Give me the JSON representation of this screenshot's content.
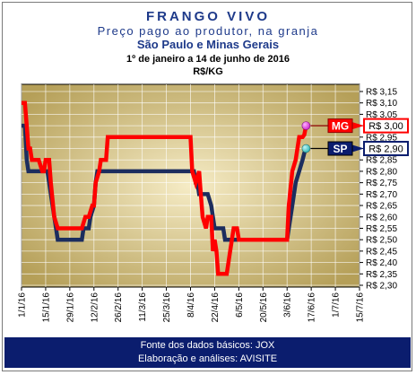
{
  "header": {
    "title": "FRANGO VIVO",
    "subtitle": "Preço pago ao produtor, na granja",
    "region": "São Paulo e Minas Gerais",
    "period": "1º de janeiro a 14 de junho de 2016",
    "unit": "R$/KG"
  },
  "footer": {
    "source": "Fonte dos dados básicos: JOX",
    "credit": "Elaboração e análises: AVISITE"
  },
  "colors": {
    "sp_line": "#1c2d5e",
    "mg_line": "#ff0000",
    "sp_marker": "#2ab3b3",
    "mg_marker": "#cc22cc",
    "plot_bg_light": "#f6ecc6",
    "plot_bg_dark": "#b59f58",
    "footer_bg": "#0b1d6e",
    "title_text": "#1e3a8a"
  },
  "chart_data": {
    "type": "line",
    "y_axis": {
      "position": "right",
      "ticks": [
        "R$ 3,15",
        "R$ 3,10",
        "R$ 3,05",
        "R$ 3,00",
        "R$ 2,95",
        "R$ 2,90",
        "R$ 2,85",
        "R$ 2,80",
        "R$ 2,75",
        "R$ 2,70",
        "R$ 2,65",
        "R$ 2,60",
        "R$ 2,55",
        "R$ 2,50",
        "R$ 2,45",
        "R$ 2,40",
        "R$ 2,35",
        "R$ 2,30"
      ],
      "range": [
        2.3,
        3.15
      ]
    },
    "x_axis": {
      "ticks": [
        "1/1/16",
        "15/1/16",
        "29/1/16",
        "12/2/16",
        "26/2/16",
        "11/3/16",
        "25/3/16",
        "8/4/16",
        "22/4/16",
        "6/5/16",
        "20/5/16",
        "3/6/16",
        "17/6/16",
        "1/7/16",
        "15/7/16"
      ]
    },
    "grid": true,
    "series": [
      {
        "name": "MG",
        "label": "MG",
        "end_value": "R$ 3,00",
        "points": [
          [
            "2016-01-01",
            3.1
          ],
          [
            "2016-01-03",
            3.1
          ],
          [
            "2016-01-04",
            3.0
          ],
          [
            "2016-01-05",
            2.9
          ],
          [
            "2016-01-06",
            2.9
          ],
          [
            "2016-01-07",
            2.85
          ],
          [
            "2016-01-11",
            2.85
          ],
          [
            "2016-01-13",
            2.8
          ],
          [
            "2016-01-14",
            2.8
          ],
          [
            "2016-01-15",
            2.85
          ],
          [
            "2016-01-17",
            2.85
          ],
          [
            "2016-01-18",
            2.75
          ],
          [
            "2016-01-20",
            2.6
          ],
          [
            "2016-01-22",
            2.55
          ],
          [
            "2016-01-25",
            2.55
          ],
          [
            "2016-02-01",
            2.55
          ],
          [
            "2016-02-05",
            2.55
          ],
          [
            "2016-02-07",
            2.6
          ],
          [
            "2016-02-09",
            2.6
          ],
          [
            "2016-02-11",
            2.65
          ],
          [
            "2016-02-12",
            2.65
          ],
          [
            "2016-02-13",
            2.75
          ],
          [
            "2016-02-15",
            2.8
          ],
          [
            "2016-02-16",
            2.85
          ],
          [
            "2016-02-19",
            2.85
          ],
          [
            "2016-02-20",
            2.95
          ],
          [
            "2016-03-01",
            2.95
          ],
          [
            "2016-03-15",
            2.95
          ],
          [
            "2016-03-28",
            2.95
          ],
          [
            "2016-04-01",
            2.95
          ],
          [
            "2016-04-08",
            2.95
          ],
          [
            "2016-04-09",
            2.8
          ],
          [
            "2016-04-11",
            2.75
          ],
          [
            "2016-04-13",
            2.8
          ],
          [
            "2016-04-14",
            2.7
          ],
          [
            "2016-04-15",
            2.6
          ],
          [
            "2016-04-17",
            2.55
          ],
          [
            "2016-04-18",
            2.6
          ],
          [
            "2016-04-20",
            2.6
          ],
          [
            "2016-04-21",
            2.45
          ],
          [
            "2016-04-22",
            2.5
          ],
          [
            "2016-04-23",
            2.45
          ],
          [
            "2016-04-24",
            2.35
          ],
          [
            "2016-04-29",
            2.35
          ],
          [
            "2016-05-01",
            2.45
          ],
          [
            "2016-05-03",
            2.55
          ],
          [
            "2016-05-05",
            2.55
          ],
          [
            "2016-05-06",
            2.5
          ],
          [
            "2016-05-31",
            2.5
          ],
          [
            "2016-06-03",
            2.5
          ],
          [
            "2016-06-04",
            2.65
          ],
          [
            "2016-06-06",
            2.8
          ],
          [
            "2016-06-08",
            2.85
          ],
          [
            "2016-06-10",
            2.95
          ],
          [
            "2016-06-12",
            2.95
          ],
          [
            "2016-06-13",
            2.96
          ],
          [
            "2016-06-14",
            3.0
          ]
        ]
      },
      {
        "name": "SP",
        "label": "SP",
        "end_value": "R$ 2,90",
        "points": [
          [
            "2016-01-01",
            3.0
          ],
          [
            "2016-01-03",
            3.0
          ],
          [
            "2016-01-04",
            2.85
          ],
          [
            "2016-01-05",
            2.8
          ],
          [
            "2016-01-11",
            2.8
          ],
          [
            "2016-01-13",
            2.8
          ],
          [
            "2016-01-16",
            2.8
          ],
          [
            "2016-01-17",
            2.75
          ],
          [
            "2016-01-19",
            2.65
          ],
          [
            "2016-01-21",
            2.55
          ],
          [
            "2016-01-22",
            2.5
          ],
          [
            "2016-01-25",
            2.5
          ],
          [
            "2016-02-01",
            2.5
          ],
          [
            "2016-02-05",
            2.5
          ],
          [
            "2016-02-06",
            2.55
          ],
          [
            "2016-02-09",
            2.55
          ],
          [
            "2016-02-10",
            2.6
          ],
          [
            "2016-02-12",
            2.65
          ],
          [
            "2016-02-13",
            2.75
          ],
          [
            "2016-02-14",
            2.8
          ],
          [
            "2016-02-20",
            2.8
          ],
          [
            "2016-03-01",
            2.8
          ],
          [
            "2016-04-01",
            2.8
          ],
          [
            "2016-04-10",
            2.8
          ],
          [
            "2016-04-11",
            2.75
          ],
          [
            "2016-04-12",
            2.75
          ],
          [
            "2016-04-13",
            2.7
          ],
          [
            "2016-04-18",
            2.7
          ],
          [
            "2016-04-20",
            2.65
          ],
          [
            "2016-04-21",
            2.6
          ],
          [
            "2016-04-22",
            2.55
          ],
          [
            "2016-04-27",
            2.55
          ],
          [
            "2016-04-28",
            2.5
          ],
          [
            "2016-05-31",
            2.5
          ],
          [
            "2016-06-03",
            2.5
          ],
          [
            "2016-06-05",
            2.6
          ],
          [
            "2016-06-07",
            2.7
          ],
          [
            "2016-06-08",
            2.75
          ],
          [
            "2016-06-10",
            2.8
          ],
          [
            "2016-06-12",
            2.85
          ],
          [
            "2016-06-13",
            2.88
          ],
          [
            "2016-06-14",
            2.9
          ]
        ]
      }
    ]
  }
}
